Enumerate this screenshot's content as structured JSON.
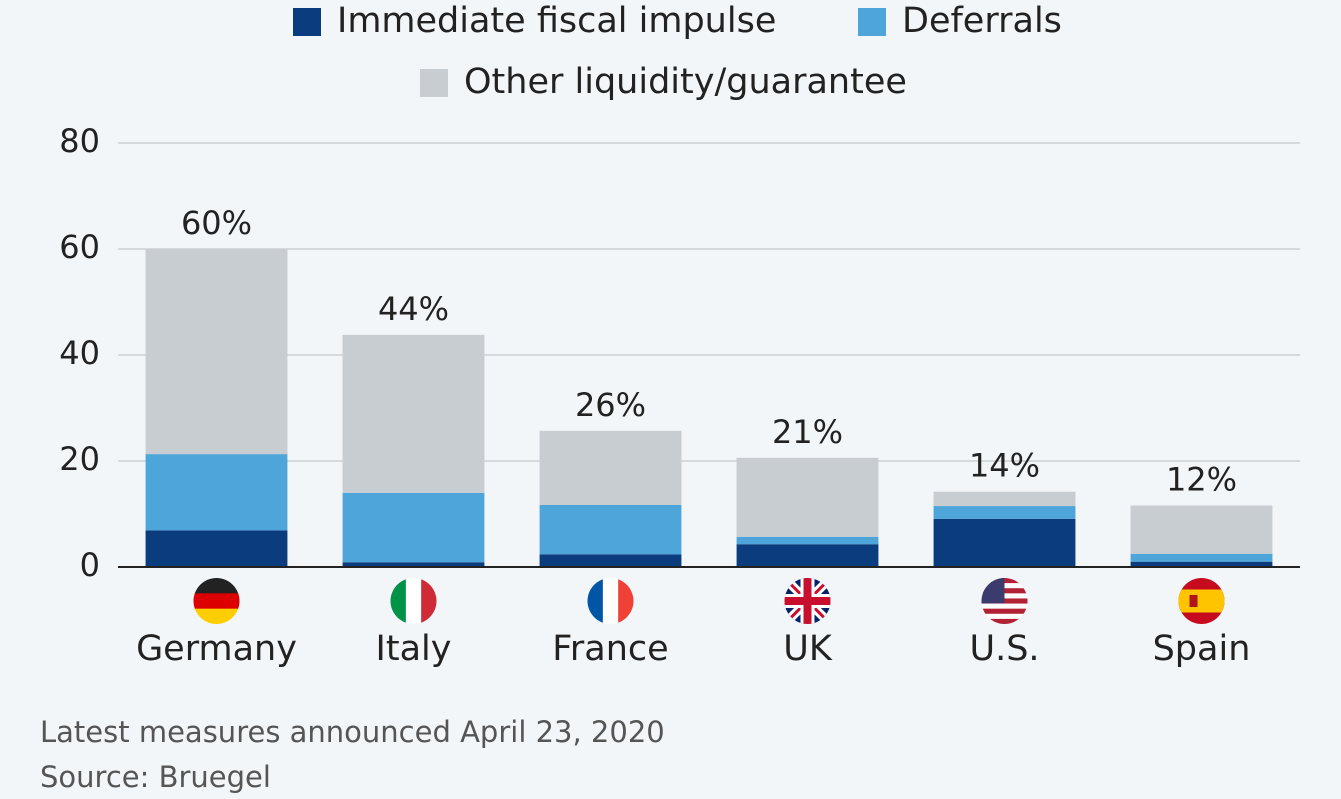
{
  "chart_data": {
    "type": "stacked_bar",
    "categories": [
      "Germany",
      "Italy",
      "France",
      "UK",
      "U.S.",
      "Spain"
    ],
    "series": [
      {
        "name": "Immediate fiscal impulse",
        "color": "#0b3c7d",
        "values": [
          6.9,
          0.9,
          2.4,
          4.3,
          9.1,
          1.0
        ]
      },
      {
        "name": "Deferrals",
        "color": "#4ea5d9",
        "values": [
          14.4,
          13.1,
          9.3,
          1.4,
          2.4,
          1.5
        ]
      },
      {
        "name": "Other liquidity/guarantee",
        "color": "#c8cdd1",
        "values": [
          38.7,
          29.8,
          14.0,
          14.9,
          2.7,
          9.1
        ]
      }
    ],
    "total_labels": [
      "60%",
      "44%",
      "26%",
      "21%",
      "14%",
      "12%"
    ],
    "ylim": [
      0,
      80
    ],
    "yticks": [
      0,
      20,
      40,
      60,
      80
    ],
    "grid": true,
    "notes": [
      "Latest measures announced April 23, 2020",
      "Source: Bruegel"
    ]
  }
}
